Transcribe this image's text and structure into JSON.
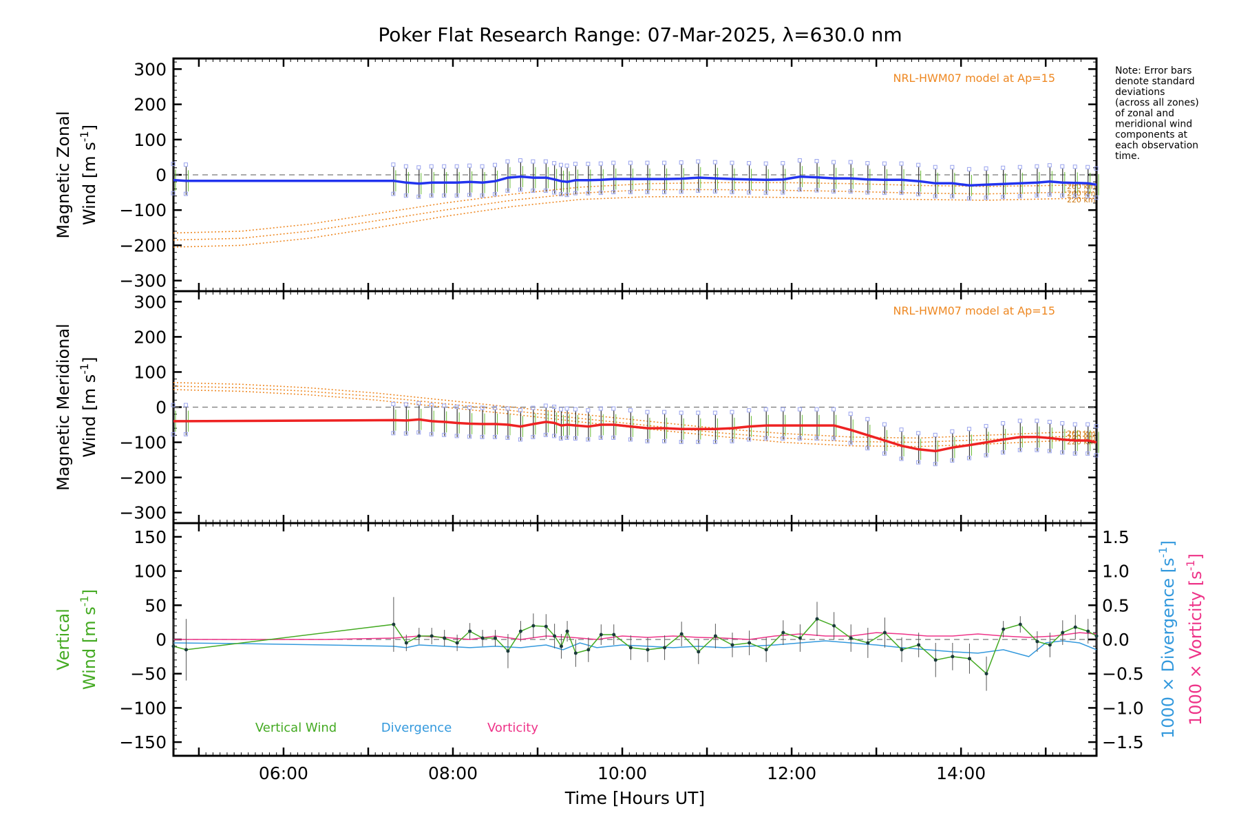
{
  "chart_data": [
    {
      "type": "line",
      "id": "zonal",
      "title": "Poker Flat Research Range: 07-Mar-2025, λ=630.0 nm",
      "ylabel_line1": "Magnetic Zonal",
      "ylabel_line2": "Wind [m s",
      "ylabel_sup": "-1",
      "ylabel_close": "]",
      "ylim": [
        -330,
        330
      ],
      "yticks": [
        -300,
        -200,
        -100,
        0,
        100,
        200,
        300
      ],
      "xlim": [
        4.7,
        15.6
      ],
      "model_label": "NRL-HWM07 model at Ap=15",
      "model_alt_labels": [
        "260 km",
        "240 km",
        "220 km"
      ],
      "series": {
        "name": "Magnetic zonal wind",
        "color": "#2233ee",
        "x": [
          4.7,
          4.85,
          7.3,
          7.45,
          7.6,
          7.75,
          7.9,
          8.05,
          8.2,
          8.35,
          8.5,
          8.65,
          8.8,
          8.95,
          9.1,
          9.2,
          9.28,
          9.35,
          9.45,
          9.6,
          9.75,
          9.9,
          10.1,
          10.3,
          10.5,
          10.7,
          10.9,
          11.1,
          11.3,
          11.5,
          11.7,
          11.9,
          12.1,
          12.3,
          12.5,
          12.7,
          12.9,
          13.1,
          13.3,
          13.5,
          13.7,
          13.9,
          14.1,
          14.3,
          14.5,
          14.7,
          14.9,
          15.05,
          15.2,
          15.35,
          15.5,
          15.6
        ],
        "y": [
          -15,
          -17,
          -17,
          -22,
          -25,
          -22,
          -22,
          -22,
          -20,
          -22,
          -18,
          -8,
          -5,
          -8,
          -8,
          -13,
          -18,
          -20,
          -15,
          -15,
          -14,
          -12,
          -12,
          -12,
          -12,
          -11,
          -8,
          -10,
          -12,
          -13,
          -14,
          -13,
          -5,
          -7,
          -10,
          -10,
          -13,
          -14,
          -14,
          -18,
          -24,
          -24,
          -30,
          -28,
          -26,
          -24,
          -22,
          -19,
          -22,
          -23,
          -24,
          -28
        ]
      },
      "model_curves": [
        {
          "label": "260 km",
          "x": [
            4.7,
            5.5,
            6.3,
            7.1,
            7.9,
            8.7,
            9.5,
            10.3,
            11.1,
            11.9,
            12.7,
            13.5,
            14.3,
            15.1,
            15.6
          ],
          "y": [
            -165,
            -160,
            -140,
            -110,
            -80,
            -55,
            -35,
            -25,
            -22,
            -22,
            -25,
            -30,
            -33,
            -30,
            -28
          ]
        },
        {
          "label": "240 km",
          "x": [
            4.7,
            5.5,
            6.3,
            7.1,
            7.9,
            8.7,
            9.5,
            10.3,
            11.1,
            11.9,
            12.7,
            13.5,
            14.3,
            15.1,
            15.6
          ],
          "y": [
            -185,
            -180,
            -160,
            -130,
            -100,
            -72,
            -52,
            -42,
            -42,
            -44,
            -47,
            -52,
            -54,
            -50,
            -48
          ]
        },
        {
          "label": "220 km",
          "x": [
            4.7,
            5.5,
            6.3,
            7.1,
            7.9,
            8.7,
            9.5,
            10.3,
            11.1,
            11.9,
            12.7,
            13.5,
            14.3,
            15.1,
            15.6
          ],
          "y": [
            -205,
            -200,
            -180,
            -150,
            -118,
            -90,
            -70,
            -62,
            -62,
            -64,
            -67,
            -70,
            -72,
            -68,
            -66
          ]
        }
      ]
    },
    {
      "type": "line",
      "id": "meridional",
      "ylabel_line1": "Magnetic Meridional",
      "ylabel_line2": "Wind [m s",
      "ylabel_sup": "-1",
      "ylabel_close": "]",
      "ylim": [
        -330,
        330
      ],
      "yticks": [
        -300,
        -200,
        -100,
        0,
        100,
        200,
        300
      ],
      "xlim": [
        4.7,
        15.6
      ],
      "model_label": "NRL-HWM07 model at Ap=15",
      "model_alt_labels": [
        "260 km",
        "240 km",
        "220 km"
      ],
      "series": {
        "name": "Magnetic meridional wind",
        "color": "#ee2222",
        "x": [
          4.7,
          4.85,
          7.3,
          7.45,
          7.6,
          7.75,
          7.9,
          8.05,
          8.2,
          8.35,
          8.5,
          8.65,
          8.8,
          8.95,
          9.1,
          9.2,
          9.28,
          9.35,
          9.45,
          9.6,
          9.75,
          9.9,
          10.1,
          10.3,
          10.5,
          10.7,
          10.9,
          11.1,
          11.3,
          11.5,
          11.7,
          11.9,
          12.1,
          12.3,
          12.5,
          12.7,
          12.9,
          13.1,
          13.3,
          13.5,
          13.7,
          13.9,
          14.1,
          14.3,
          14.5,
          14.7,
          14.9,
          15.05,
          15.2,
          15.35,
          15.5,
          15.6
        ],
        "y": [
          -40,
          -40,
          -37,
          -38,
          -35,
          -40,
          -42,
          -45,
          -47,
          -48,
          -48,
          -50,
          -55,
          -48,
          -42,
          -45,
          -52,
          -50,
          -52,
          -55,
          -50,
          -50,
          -55,
          -60,
          -60,
          -62,
          -62,
          -62,
          -60,
          -55,
          -52,
          -52,
          -52,
          -52,
          -52,
          -65,
          -80,
          -95,
          -110,
          -120,
          -125,
          -115,
          -108,
          -100,
          -92,
          -85,
          -85,
          -88,
          -92,
          -95,
          -95,
          -100
        ]
      },
      "model_curves": [
        {
          "label": "260 km",
          "x": [
            4.7,
            5.5,
            6.3,
            7.1,
            7.9,
            8.7,
            9.5,
            10.3,
            11.1,
            11.9,
            12.7,
            13.5,
            14.3,
            15.1,
            15.6
          ],
          "y": [
            70,
            65,
            55,
            40,
            20,
            0,
            -20,
            -40,
            -60,
            -75,
            -85,
            -88,
            -80,
            -72,
            -70
          ]
        },
        {
          "label": "240 km",
          "x": [
            4.7,
            5.5,
            6.3,
            7.1,
            7.9,
            8.7,
            9.5,
            10.3,
            11.1,
            11.9,
            12.7,
            13.5,
            14.3,
            15.1,
            15.6
          ],
          "y": [
            60,
            55,
            45,
            30,
            10,
            -10,
            -32,
            -52,
            -72,
            -88,
            -98,
            -100,
            -92,
            -84,
            -82
          ]
        },
        {
          "label": "220 km",
          "x": [
            4.7,
            5.5,
            6.3,
            7.1,
            7.9,
            8.7,
            9.5,
            10.3,
            11.1,
            11.9,
            12.7,
            13.5,
            14.3,
            15.1,
            15.6
          ],
          "y": [
            50,
            45,
            35,
            20,
            0,
            -20,
            -42,
            -62,
            -82,
            -100,
            -110,
            -112,
            -105,
            -96,
            -94
          ]
        }
      ]
    },
    {
      "type": "line",
      "id": "vertical",
      "xlabel": "Time [Hours UT]",
      "xticks": [
        6,
        8,
        10,
        12,
        14
      ],
      "xtick_labels": [
        "06:00",
        "08:00",
        "10:00",
        "12:00",
        "14:00"
      ],
      "xlim": [
        4.7,
        15.6
      ],
      "ylim": [
        -170,
        170
      ],
      "yticks": [
        -150,
        -100,
        -50,
        0,
        50,
        100,
        150
      ],
      "ylim_right": [
        -1.7,
        1.7
      ],
      "yticks_right": [
        -1.5,
        -1.0,
        -0.5,
        0.0,
        0.5,
        1.0,
        1.5
      ],
      "yticks_right_labels": [
        "−1.5",
        "−1.0",
        "−0.5",
        "0.0",
        "0.5",
        "1.0",
        "1.5"
      ],
      "ylabel_left_line1": "Vertical",
      "ylabel_left_line2": "Wind [m s",
      "ylabel_left_sup": "-1",
      "ylabel_left_close": "]",
      "ylabel_right1": "1000 × Divergence [s",
      "ylabel_right1_sup": "-1",
      "ylabel_right1_close": "]",
      "ylabel_right2": "1000 × Vorticity [s",
      "ylabel_right2_sup": "-1",
      "ylabel_right2_close": "]",
      "legend": [
        {
          "name": "Vertical Wind",
          "color": "#44aa22"
        },
        {
          "name": "Divergence",
          "color": "#3399dd"
        },
        {
          "name": "Vorticity",
          "color": "#ee3388"
        }
      ],
      "series": [
        {
          "name": "Vertical Wind",
          "color": "#44aa22",
          "x": [
            4.7,
            4.85,
            7.3,
            7.45,
            7.6,
            7.75,
            7.9,
            8.05,
            8.2,
            8.35,
            8.5,
            8.65,
            8.8,
            8.95,
            9.1,
            9.2,
            9.28,
            9.35,
            9.45,
            9.6,
            9.75,
            9.9,
            10.1,
            10.3,
            10.5,
            10.7,
            10.9,
            11.1,
            11.3,
            11.5,
            11.7,
            11.9,
            12.1,
            12.3,
            12.5,
            12.7,
            12.9,
            13.1,
            13.3,
            13.5,
            13.7,
            13.9,
            14.1,
            14.3,
            14.5,
            14.7,
            14.9,
            15.05,
            15.2,
            15.35,
            15.5,
            15.6
          ],
          "y": [
            -10,
            -15,
            22,
            -5,
            5,
            5,
            2,
            -5,
            12,
            2,
            2,
            -17,
            12,
            20,
            19,
            5,
            -10,
            12,
            -20,
            -15,
            7,
            7,
            -12,
            -15,
            -12,
            8,
            -18,
            5,
            -8,
            -5,
            -15,
            10,
            2,
            30,
            20,
            2,
            -5,
            10,
            -15,
            -8,
            -30,
            -25,
            -28,
            -50,
            15,
            22,
            -3,
            -8,
            10,
            18,
            12,
            5
          ],
          "err": [
            40,
            45,
            40,
            12,
            12,
            12,
            12,
            12,
            12,
            12,
            12,
            25,
            15,
            18,
            18,
            18,
            18,
            15,
            20,
            18,
            15,
            15,
            18,
            18,
            18,
            18,
            18,
            18,
            18,
            18,
            18,
            18,
            20,
            25,
            20,
            20,
            22,
            22,
            18,
            18,
            25,
            20,
            22,
            25,
            12,
            12,
            15,
            18,
            18,
            18,
            18,
            18
          ]
        },
        {
          "name": "Divergence",
          "color": "#3399dd",
          "x": [
            4.7,
            5.5,
            6.5,
            7.3,
            7.45,
            7.6,
            7.9,
            8.2,
            8.5,
            8.8,
            9.1,
            9.3,
            9.5,
            9.7,
            10.0,
            10.3,
            10.6,
            10.9,
            11.2,
            11.5,
            11.8,
            12.1,
            12.4,
            12.7,
            13.0,
            13.3,
            13.6,
            13.9,
            14.2,
            14.5,
            14.8,
            15.0,
            15.2,
            15.4,
            15.6
          ],
          "y": [
            -0.05,
            -0.06,
            -0.08,
            -0.1,
            -0.12,
            -0.08,
            -0.1,
            -0.12,
            -0.1,
            -0.12,
            -0.08,
            -0.15,
            -0.05,
            -0.12,
            -0.08,
            -0.1,
            -0.12,
            -0.1,
            -0.12,
            -0.1,
            -0.08,
            -0.05,
            -0.02,
            -0.05,
            -0.08,
            -0.12,
            -0.15,
            -0.18,
            -0.2,
            -0.15,
            -0.25,
            -0.05,
            -0.02,
            -0.05,
            -0.15
          ]
        },
        {
          "name": "Vorticity",
          "color": "#ee3388",
          "x": [
            4.7,
            5.5,
            6.5,
            7.3,
            7.6,
            7.9,
            8.2,
            8.5,
            8.8,
            9.1,
            9.4,
            9.7,
            10.0,
            10.3,
            10.6,
            10.9,
            11.2,
            11.5,
            11.8,
            12.1,
            12.4,
            12.7,
            13.0,
            13.3,
            13.6,
            13.9,
            14.2,
            14.5,
            14.8,
            15.1,
            15.4,
            15.6
          ],
          "y": [
            0.0,
            0.0,
            0.0,
            0.02,
            0.05,
            0.03,
            0.0,
            0.05,
            0.0,
            0.05,
            0.03,
            0.0,
            0.05,
            0.03,
            0.05,
            0.03,
            0.02,
            0.0,
            0.05,
            0.08,
            0.05,
            0.05,
            0.1,
            0.08,
            0.05,
            0.05,
            0.08,
            0.05,
            0.03,
            0.05,
            0.1,
            0.08
          ]
        }
      ]
    }
  ],
  "note": {
    "lines": [
      "Note: Error bars",
      "denote standard",
      "deviations",
      "(across all zones)",
      "of zonal and",
      "meridional wind",
      "components at",
      "each observation",
      "time."
    ]
  }
}
